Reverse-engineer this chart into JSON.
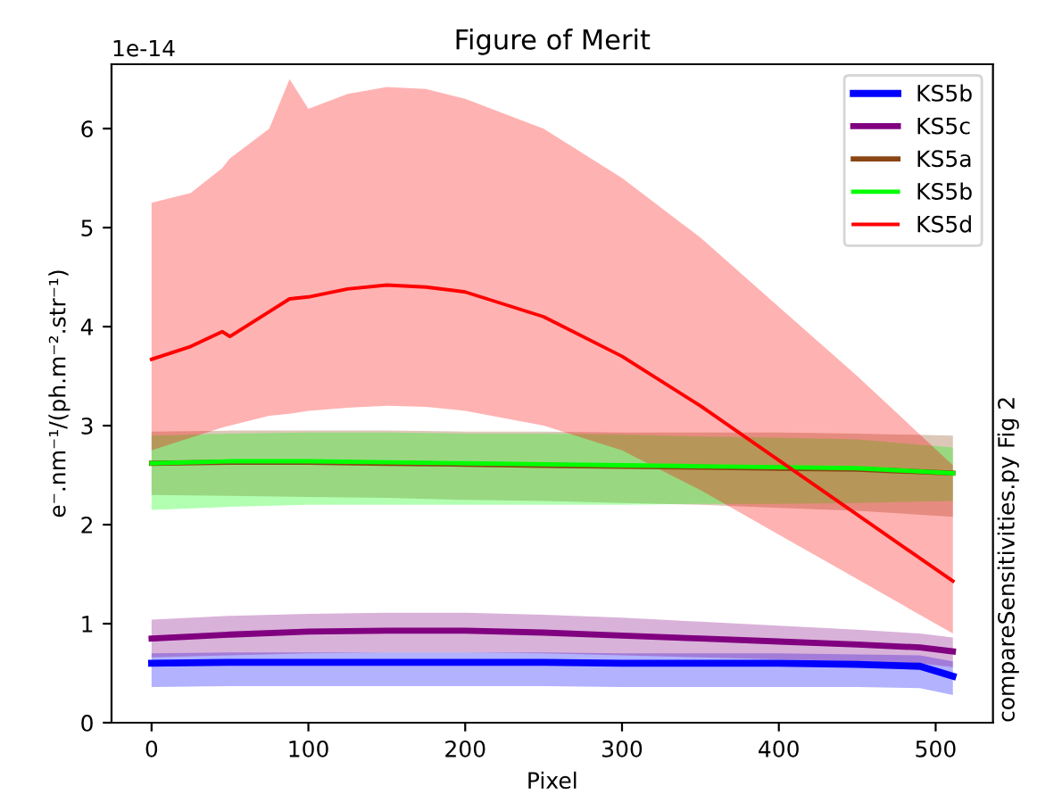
{
  "chart_data": {
    "type": "line",
    "title": "Figure of Merit",
    "xlabel": "Pixel",
    "ylabel": "e⁻.nm⁻¹/(ph.m⁻².str⁻¹)",
    "annotations": [
      "1e-14",
      "compareSensitivities.py Fig 2"
    ],
    "xlim": [
      -25.55,
      536.55
    ],
    "xticks": [
      0,
      100,
      200,
      300,
      400,
      500
    ],
    "ylim": [
      0,
      6.65
    ],
    "yticks": [
      0,
      1,
      2,
      3,
      4,
      5,
      6
    ],
    "grid": false,
    "legend": "top right",
    "marker": "none",
    "line_style": "solid",
    "series": [
      {
        "name": "KS5b",
        "color": "#0000ff",
        "x": [
          0,
          50,
          100,
          150,
          200,
          250,
          300,
          350,
          400,
          450,
          490,
          511
        ],
        "values": [
          0.6,
          0.61,
          0.61,
          0.61,
          0.61,
          0.61,
          0.6,
          0.6,
          0.6,
          0.59,
          0.57,
          0.47
        ],
        "lower": [
          0.36,
          0.37,
          0.37,
          0.37,
          0.37,
          0.37,
          0.36,
          0.36,
          0.36,
          0.36,
          0.35,
          0.28
        ],
        "upper": [
          0.7,
          0.71,
          0.71,
          0.71,
          0.71,
          0.71,
          0.7,
          0.7,
          0.7,
          0.69,
          0.68,
          0.62
        ]
      },
      {
        "name": "KS5c",
        "color": "#800080",
        "x": [
          0,
          50,
          100,
          150,
          200,
          250,
          300,
          350,
          400,
          450,
          490,
          511
        ],
        "values": [
          0.85,
          0.89,
          0.92,
          0.93,
          0.93,
          0.91,
          0.88,
          0.85,
          0.82,
          0.79,
          0.76,
          0.72
        ],
        "lower": [
          0.66,
          0.68,
          0.7,
          0.71,
          0.71,
          0.7,
          0.68,
          0.66,
          0.64,
          0.62,
          0.6,
          0.56
        ],
        "upper": [
          1.04,
          1.08,
          1.1,
          1.11,
          1.11,
          1.09,
          1.06,
          1.02,
          0.98,
          0.94,
          0.9,
          0.86
        ]
      },
      {
        "name": "KS5a",
        "color": "#8b4513",
        "x": [
          0,
          50,
          100,
          150,
          200,
          250,
          300,
          350,
          400,
          450,
          511
        ],
        "values": [
          2.62,
          2.63,
          2.63,
          2.62,
          2.61,
          2.6,
          2.59,
          2.58,
          2.57,
          2.56,
          2.52
        ],
        "lower": [
          2.3,
          2.29,
          2.28,
          2.27,
          2.25,
          2.24,
          2.22,
          2.2,
          2.17,
          2.14,
          2.08
        ],
        "upper": [
          2.94,
          2.95,
          2.95,
          2.95,
          2.94,
          2.94,
          2.93,
          2.93,
          2.93,
          2.92,
          2.9
        ]
      },
      {
        "name": "KS5b",
        "color": "#00ff00",
        "x": [
          0,
          50,
          100,
          150,
          200,
          250,
          300,
          350,
          400,
          450,
          511
        ],
        "values": [
          2.62,
          2.64,
          2.64,
          2.63,
          2.62,
          2.61,
          2.6,
          2.59,
          2.58,
          2.57,
          2.52
        ],
        "lower": [
          2.15,
          2.18,
          2.2,
          2.2,
          2.2,
          2.2,
          2.2,
          2.21,
          2.21,
          2.22,
          2.24
        ],
        "upper": [
          2.9,
          2.92,
          2.93,
          2.93,
          2.92,
          2.92,
          2.91,
          2.89,
          2.88,
          2.86,
          2.78
        ]
      },
      {
        "name": "KS5d",
        "color": "#ff0000",
        "x": [
          0,
          25,
          45,
          50,
          75,
          88,
          100,
          125,
          150,
          175,
          200,
          250,
          300,
          350,
          400,
          450,
          511
        ],
        "values": [
          3.67,
          3.8,
          3.95,
          3.9,
          4.15,
          4.28,
          4.3,
          4.38,
          4.42,
          4.4,
          4.35,
          4.1,
          3.7,
          3.2,
          2.65,
          2.1,
          1.43
        ],
        "lower": [
          2.75,
          2.88,
          2.98,
          3.0,
          3.1,
          3.12,
          3.15,
          3.18,
          3.2,
          3.19,
          3.15,
          3.0,
          2.75,
          2.35,
          1.9,
          1.45,
          0.9
        ],
        "upper": [
          5.25,
          5.35,
          5.6,
          5.7,
          6.0,
          6.5,
          6.2,
          6.35,
          6.42,
          6.4,
          6.3,
          6.0,
          5.5,
          4.9,
          4.2,
          3.5,
          2.6
        ]
      }
    ]
  }
}
